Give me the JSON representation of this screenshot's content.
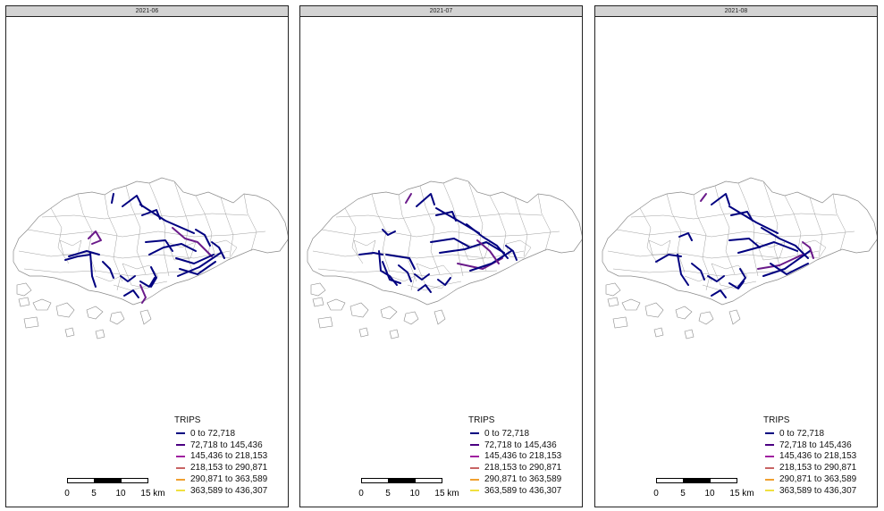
{
  "panels": [
    {
      "title": "2021-06"
    },
    {
      "title": "2021-07"
    },
    {
      "title": "2021-08"
    }
  ],
  "legend": {
    "title": "TRIPS",
    "items": [
      {
        "label": "0 to 72,718",
        "color": "#000080"
      },
      {
        "label": "72,718 to 145,436",
        "color": "#4b0082"
      },
      {
        "label": "145,436 to 218,153",
        "color": "#a020a0"
      },
      {
        "label": "218,153 to 290,871",
        "color": "#c86464"
      },
      {
        "label": "290,871 to 363,589",
        "color": "#f0a030"
      },
      {
        "label": "363,589 to 436,307",
        "color": "#f0e040"
      }
    ]
  },
  "scalebar": {
    "labels": [
      "0",
      "5",
      "10",
      "15 km"
    ]
  },
  "colors": {
    "flow": "#000080",
    "flow_alt": "#6a1a8a",
    "boundary": "#999999"
  }
}
